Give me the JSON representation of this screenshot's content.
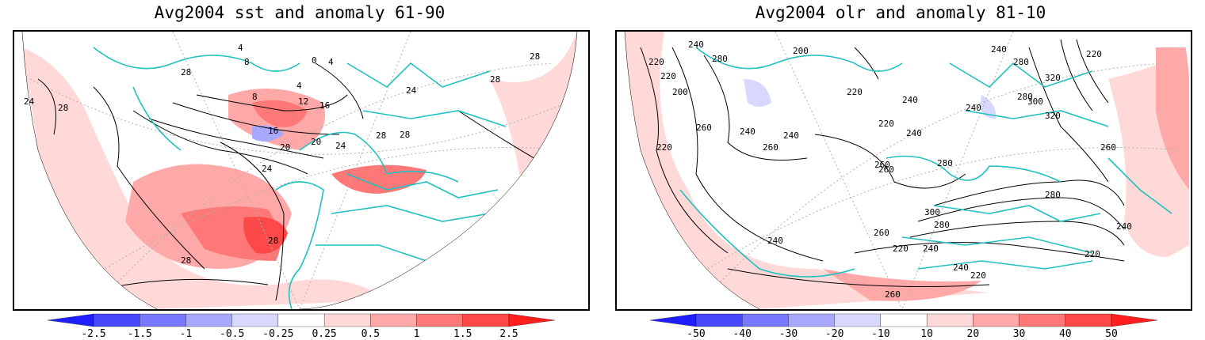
{
  "panels": [
    {
      "title": "Avg2004 sst and anomaly 61-90",
      "contour_labels": [
        "4",
        "8",
        "0",
        "4",
        "28",
        "24",
        "28",
        "4",
        "8",
        "12",
        "16",
        "16",
        "20",
        "20",
        "24",
        "24",
        "28",
        "28",
        "28",
        "24",
        "28",
        "28",
        "28"
      ],
      "colorbar": {
        "ticks": [
          "-2.5",
          "-1.5",
          "-1",
          "-0.5",
          "-0.25",
          "0.25",
          "0.5",
          "1",
          "1.5",
          "2.5"
        ],
        "colors": [
          "#1e1eff",
          "#4848ff",
          "#7878ff",
          "#a8a8ff",
          "#d8d8ff",
          "#ffffff",
          "#ffd8d8",
          "#ffa8a8",
          "#ff7878",
          "#ff4848",
          "#ff1e1e"
        ]
      }
    },
    {
      "title": "Avg2004 olr and anomaly 81-10",
      "contour_labels": [
        "220",
        "240",
        "280",
        "220",
        "200",
        "200",
        "240",
        "240",
        "260",
        "220",
        "220",
        "220",
        "240",
        "240",
        "240",
        "260",
        "260",
        "280",
        "300",
        "320",
        "320",
        "280",
        "240",
        "220",
        "260",
        "280",
        "280",
        "300",
        "280",
        "260",
        "240",
        "220",
        "240",
        "240",
        "220",
        "260",
        "260",
        "240",
        "220"
      ],
      "colorbar": {
        "ticks": [
          "-50",
          "-40",
          "-30",
          "-20",
          "-10",
          "10",
          "20",
          "30",
          "40",
          "50"
        ],
        "colors": [
          "#1e1eff",
          "#4848ff",
          "#7878ff",
          "#a8a8ff",
          "#d8d8ff",
          "#ffffff",
          "#ffd8d8",
          "#ffa8a8",
          "#ff7878",
          "#ff4848",
          "#ff1e1e"
        ]
      }
    }
  ],
  "colors": {
    "coastline": "#20c0c0",
    "contour": "#000000",
    "grid": "#b0b0b0",
    "pos_light": "#ffd8d8",
    "pos_mid": "#ffa8a8",
    "pos_strong": "#ff7878",
    "pos_max": "#ff4848",
    "neg_light": "#d8d8ff",
    "neg_mid": "#a8a8ff"
  }
}
